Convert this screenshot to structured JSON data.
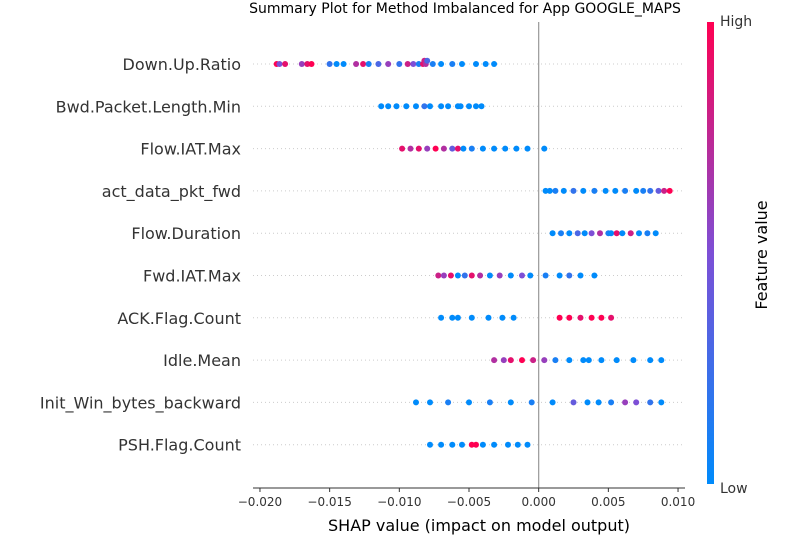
{
  "chart_data": {
    "type": "scatter",
    "subtype": "shap-beeswarm",
    "title": "Summary Plot for Method Imbalanced for App GOOGLE_MAPS",
    "xlabel": "SHAP value (impact on model output)",
    "xlim": [
      -0.0205,
      0.0105
    ],
    "x_ticks": [
      -0.02,
      -0.015,
      -0.01,
      -0.005,
      0.0,
      0.005,
      0.01
    ],
    "x_tick_labels": [
      "−0.020",
      "−0.015",
      "−0.010",
      "−0.005",
      "0.000",
      "0.005",
      "0.010"
    ],
    "zero_line": 0.0,
    "grid": false,
    "colorbar": {
      "label": "Feature value",
      "high_label": "High",
      "low_label": "Low",
      "low_color": "#008bfb",
      "high_color": "#ff0052"
    },
    "features": [
      {
        "name": "Down.Up.Ratio",
        "points": [
          {
            "x": -0.0188,
            "f": 1.0
          },
          {
            "x": -0.0186,
            "f": 0.5
          },
          {
            "x": -0.0182,
            "f": 0.9
          },
          {
            "x": -0.017,
            "f": 0.6
          },
          {
            "x": -0.0166,
            "f": 0.9
          },
          {
            "x": -0.0163,
            "f": 1.0
          },
          {
            "x": -0.015,
            "f": 0.2
          },
          {
            "x": -0.0145,
            "f": 0.0
          },
          {
            "x": -0.014,
            "f": 0.0
          },
          {
            "x": -0.0131,
            "f": 0.7
          },
          {
            "x": -0.0126,
            "f": 0.9
          },
          {
            "x": -0.0122,
            "f": 0.1
          },
          {
            "x": -0.0115,
            "f": 0.3
          },
          {
            "x": -0.0108,
            "f": 0.6
          },
          {
            "x": -0.01,
            "f": 0.2
          },
          {
            "x": -0.0094,
            "f": 0.8
          },
          {
            "x": -0.009,
            "f": 0.5
          },
          {
            "x": -0.0086,
            "f": 0.1
          },
          {
            "x": -0.0083,
            "f": 0.9
          },
          {
            "x": -0.0082,
            "f": 0.8
          },
          {
            "x": -0.0081,
            "f": 0.7
          },
          {
            "x": -0.008,
            "f": 0.3
          },
          {
            "x": -0.0076,
            "f": 0.1
          },
          {
            "x": -0.007,
            "f": 0.0
          },
          {
            "x": -0.0062,
            "f": 0.1
          },
          {
            "x": -0.0055,
            "f": 0.0
          },
          {
            "x": -0.0045,
            "f": 0.0
          },
          {
            "x": -0.0038,
            "f": 0.0
          },
          {
            "x": -0.0032,
            "f": 0.0
          }
        ]
      },
      {
        "name": "Bwd.Packet.Length.Min",
        "points": [
          {
            "x": -0.0113,
            "f": 0.0
          },
          {
            "x": -0.0108,
            "f": 0.0
          },
          {
            "x": -0.0102,
            "f": 0.0
          },
          {
            "x": -0.0095,
            "f": 0.0
          },
          {
            "x": -0.0088,
            "f": 0.0
          },
          {
            "x": -0.0082,
            "f": 0.2
          },
          {
            "x": -0.0078,
            "f": 0.0
          },
          {
            "x": -0.007,
            "f": 0.0
          },
          {
            "x": -0.0065,
            "f": 0.0
          },
          {
            "x": -0.0058,
            "f": 0.0
          },
          {
            "x": -0.0056,
            "f": 0.0
          },
          {
            "x": -0.005,
            "f": 0.0
          },
          {
            "x": -0.0045,
            "f": 0.0
          },
          {
            "x": -0.0041,
            "f": 0.0
          }
        ]
      },
      {
        "name": "Flow.IAT.Max",
        "points": [
          {
            "x": -0.0098,
            "f": 0.9
          },
          {
            "x": -0.0092,
            "f": 0.7
          },
          {
            "x": -0.0086,
            "f": 0.9
          },
          {
            "x": -0.008,
            "f": 0.6
          },
          {
            "x": -0.0074,
            "f": 1.0
          },
          {
            "x": -0.0068,
            "f": 0.7
          },
          {
            "x": -0.0062,
            "f": 0.4
          },
          {
            "x": -0.0058,
            "f": 0.9
          },
          {
            "x": -0.0054,
            "f": 0.0
          },
          {
            "x": -0.0048,
            "f": 0.1
          },
          {
            "x": -0.004,
            "f": 0.0
          },
          {
            "x": -0.0032,
            "f": 0.0
          },
          {
            "x": -0.0024,
            "f": 0.0
          },
          {
            "x": -0.0016,
            "f": 0.0
          },
          {
            "x": -0.0008,
            "f": 0.0
          },
          {
            "x": 0.0004,
            "f": 0.0
          }
        ]
      },
      {
        "name": "act_data_pkt_fwd",
        "points": [
          {
            "x": 0.0005,
            "f": 0.0
          },
          {
            "x": 0.0008,
            "f": 0.0
          },
          {
            "x": 0.0012,
            "f": 0.1
          },
          {
            "x": 0.0018,
            "f": 0.0
          },
          {
            "x": 0.0025,
            "f": 0.2
          },
          {
            "x": 0.0032,
            "f": 0.0
          },
          {
            "x": 0.004,
            "f": 0.1
          },
          {
            "x": 0.0048,
            "f": 0.0
          },
          {
            "x": 0.0055,
            "f": 0.0
          },
          {
            "x": 0.0062,
            "f": 0.1
          },
          {
            "x": 0.007,
            "f": 0.0
          },
          {
            "x": 0.0075,
            "f": 0.1
          },
          {
            "x": 0.008,
            "f": 0.2
          },
          {
            "x": 0.0086,
            "f": 0.4
          },
          {
            "x": 0.009,
            "f": 0.8
          },
          {
            "x": 0.0094,
            "f": 1.0
          }
        ]
      },
      {
        "name": "Flow.Duration",
        "points": [
          {
            "x": 0.001,
            "f": 0.0
          },
          {
            "x": 0.0016,
            "f": 0.1
          },
          {
            "x": 0.0022,
            "f": 0.0
          },
          {
            "x": 0.0028,
            "f": 0.3
          },
          {
            "x": 0.0033,
            "f": 0.0
          },
          {
            "x": 0.0038,
            "f": 0.5
          },
          {
            "x": 0.0044,
            "f": 0.7
          },
          {
            "x": 0.005,
            "f": 0.1
          },
          {
            "x": 0.0052,
            "f": 0.0
          },
          {
            "x": 0.0056,
            "f": 0.9
          },
          {
            "x": 0.006,
            "f": 0.0
          },
          {
            "x": 0.0066,
            "f": 0.8
          },
          {
            "x": 0.0072,
            "f": 0.0
          },
          {
            "x": 0.0078,
            "f": 0.1
          },
          {
            "x": 0.0084,
            "f": 0.0
          }
        ]
      },
      {
        "name": "Fwd.IAT.Max",
        "points": [
          {
            "x": -0.0072,
            "f": 0.8
          },
          {
            "x": -0.0068,
            "f": 0.6
          },
          {
            "x": -0.0063,
            "f": 0.9
          },
          {
            "x": -0.0058,
            "f": 0.0
          },
          {
            "x": -0.0053,
            "f": 0.2
          },
          {
            "x": -0.0048,
            "f": 0.9
          },
          {
            "x": -0.0042,
            "f": 0.7
          },
          {
            "x": -0.0035,
            "f": 0.0
          },
          {
            "x": -0.0028,
            "f": 0.6
          },
          {
            "x": -0.002,
            "f": 0.0
          },
          {
            "x": -0.0012,
            "f": 0.5
          },
          {
            "x": -0.0006,
            "f": 0.0
          },
          {
            "x": 0.0005,
            "f": 0.1
          },
          {
            "x": 0.0015,
            "f": 0.0
          },
          {
            "x": 0.0022,
            "f": 0.2
          },
          {
            "x": 0.003,
            "f": 0.0
          },
          {
            "x": 0.004,
            "f": 0.0
          }
        ]
      },
      {
        "name": "ACK.Flag.Count",
        "points": [
          {
            "x": -0.007,
            "f": 0.0
          },
          {
            "x": -0.0062,
            "f": 0.0
          },
          {
            "x": -0.0058,
            "f": 0.0
          },
          {
            "x": -0.0048,
            "f": 0.0
          },
          {
            "x": -0.0036,
            "f": 0.0
          },
          {
            "x": -0.0026,
            "f": 0.0
          },
          {
            "x": -0.0018,
            "f": 0.0
          },
          {
            "x": 0.0015,
            "f": 1.0
          },
          {
            "x": 0.0022,
            "f": 1.0
          },
          {
            "x": 0.003,
            "f": 0.9
          },
          {
            "x": 0.0038,
            "f": 1.0
          },
          {
            "x": 0.0045,
            "f": 1.0
          },
          {
            "x": 0.0052,
            "f": 0.9
          }
        ]
      },
      {
        "name": "Idle.Mean",
        "points": [
          {
            "x": -0.0032,
            "f": 0.7
          },
          {
            "x": -0.0025,
            "f": 0.6
          },
          {
            "x": -0.002,
            "f": 0.9
          },
          {
            "x": -0.0012,
            "f": 1.0
          },
          {
            "x": -0.0004,
            "f": 0.8
          },
          {
            "x": 0.0004,
            "f": 0.6
          },
          {
            "x": 0.0012,
            "f": 0.1
          },
          {
            "x": 0.0022,
            "f": 0.0
          },
          {
            "x": 0.0032,
            "f": 0.0
          },
          {
            "x": 0.0036,
            "f": 0.0
          },
          {
            "x": 0.0045,
            "f": 0.0
          },
          {
            "x": 0.0056,
            "f": 0.0
          },
          {
            "x": 0.0068,
            "f": 0.0
          },
          {
            "x": 0.008,
            "f": 0.0
          },
          {
            "x": 0.0088,
            "f": 0.0
          }
        ]
      },
      {
        "name": "Init_Win_bytes_backward",
        "points": [
          {
            "x": -0.0088,
            "f": 0.0
          },
          {
            "x": -0.0078,
            "f": 0.0
          },
          {
            "x": -0.0065,
            "f": 0.1
          },
          {
            "x": -0.005,
            "f": 0.0
          },
          {
            "x": -0.0035,
            "f": 0.1
          },
          {
            "x": -0.002,
            "f": 0.0
          },
          {
            "x": -0.0005,
            "f": 0.1
          },
          {
            "x": 0.001,
            "f": 0.0
          },
          {
            "x": 0.0025,
            "f": 0.4
          },
          {
            "x": 0.0035,
            "f": 0.0
          },
          {
            "x": 0.0043,
            "f": 0.0
          },
          {
            "x": 0.0052,
            "f": 0.1
          },
          {
            "x": 0.0062,
            "f": 0.6
          },
          {
            "x": 0.007,
            "f": 0.5
          },
          {
            "x": 0.008,
            "f": 0.2
          },
          {
            "x": 0.0088,
            "f": 0.0
          }
        ]
      },
      {
        "name": "PSH.Flag.Count",
        "points": [
          {
            "x": -0.0078,
            "f": 0.0
          },
          {
            "x": -0.007,
            "f": 0.0
          },
          {
            "x": -0.0062,
            "f": 0.0
          },
          {
            "x": -0.0055,
            "f": 0.0
          },
          {
            "x": -0.0048,
            "f": 1.0
          },
          {
            "x": -0.0045,
            "f": 1.0
          },
          {
            "x": -0.004,
            "f": 0.0
          },
          {
            "x": -0.0032,
            "f": 0.0
          },
          {
            "x": -0.0022,
            "f": 0.0
          },
          {
            "x": -0.0015,
            "f": 0.0
          },
          {
            "x": -0.0008,
            "f": 0.0
          }
        ]
      }
    ]
  }
}
